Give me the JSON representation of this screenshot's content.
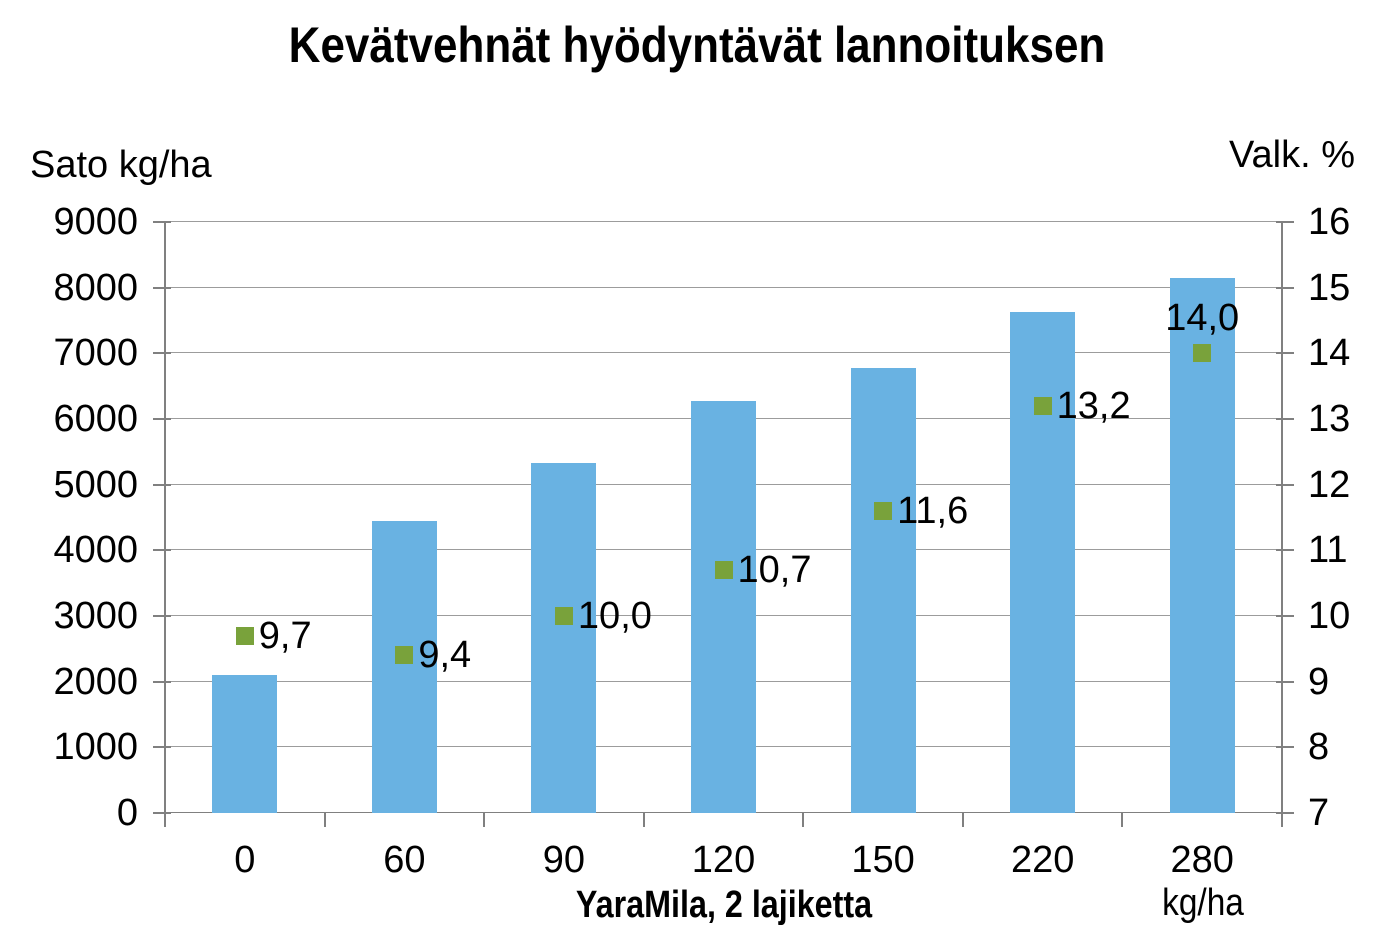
{
  "title": "Kevätvehnät hyödyntävät lannoituksen",
  "left_axis_title": "Sato kg/ha",
  "right_axis_title": "Valk. %",
  "x_axis_title": "YaraMila, 2 lajiketta",
  "x_axis_unit_label": "kg/ha",
  "colors": {
    "bar": "#69B2E2",
    "marker": "#79A23B",
    "gridline": "#9C9C9C",
    "axis": "#808080",
    "text": "#000000",
    "background": "#FFFFFF"
  },
  "chart_data": {
    "type": "bar",
    "title": "Kevätvehnät hyödyntävät lannoituksen",
    "categories": [
      "0",
      "60",
      "90",
      "120",
      "150",
      "220",
      "280"
    ],
    "xlabel": "YaraMila, 2 lajiketta",
    "x_unit": "kg/ha",
    "grid": true,
    "legend": false,
    "left_axis": {
      "title": "Sato kg/ha",
      "min": 0,
      "max": 9000,
      "step": 1000
    },
    "right_axis": {
      "title": "Valk. %",
      "min": 7,
      "max": 16,
      "step": 1
    },
    "series": [
      {
        "name": "Sato kg/ha",
        "type": "bar",
        "axis": "left",
        "values": [
          2100,
          4450,
          5330,
          6270,
          6780,
          7630,
          8140
        ]
      },
      {
        "name": "Valk. %",
        "type": "scatter",
        "axis": "right",
        "values": [
          9.7,
          9.4,
          10.0,
          10.7,
          11.6,
          13.2,
          14.0
        ],
        "point_labels": [
          "9,7",
          "9,4",
          "10,0",
          "10,7",
          "11,6",
          "13,2",
          "14,0"
        ],
        "label_positions": [
          "right",
          "right",
          "right",
          "right",
          "right",
          "right",
          "above"
        ]
      }
    ]
  }
}
